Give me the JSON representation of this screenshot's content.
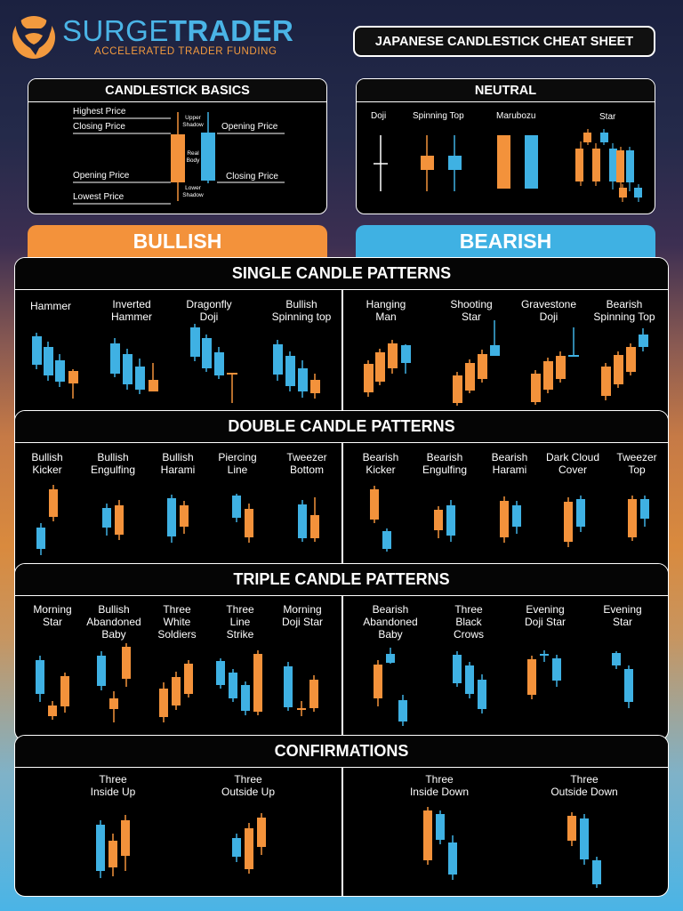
{
  "header": {
    "brand_light": "SURGE",
    "brand_bold": "TRADER",
    "tagline": "ACCELERATED TRADER FUNDING",
    "title": "JAPANESE CANDLESTICK CHEAT SHEET"
  },
  "colors": {
    "bullish": "#f3923b",
    "bearish": "#3fb1e3",
    "background": "#000000"
  },
  "basics": {
    "title": "CANDLESTICK BASICS",
    "left_labels": [
      "Highest Price",
      "Closing Price",
      "Opening Price",
      "Lowest Price"
    ],
    "mid_labels": {
      "upper": "Upper\nShadow",
      "real": "Real\nBody",
      "lower": "Lower\nShadow"
    },
    "right_labels": [
      "Opening Price",
      "Closing Price"
    ]
  },
  "neutral": {
    "title": "NEUTRAL",
    "items": [
      "Doji",
      "Spinning Top",
      "Marubozu",
      "Star"
    ]
  },
  "tabs": {
    "bullish": "BULLISH",
    "bearish": "BEARISH"
  },
  "single": {
    "title": "SINGLE CANDLE PATTERNS",
    "bullish": [
      "Hammer",
      "Inverted\nHammer",
      "Dragonfly\nDoji",
      "Bullish\nSpinning top"
    ],
    "bearish": [
      "Hanging\nMan",
      "Shooting\nStar",
      "Gravestone\nDoji",
      "Bearish\nSpinning Top"
    ]
  },
  "double": {
    "title": "DOUBLE CANDLE PATTERNS",
    "bullish": [
      "Bullish\nKicker",
      "Bullish\nEngulfing",
      "Bullish\nHarami",
      "Piercing\nLine",
      "Tweezer\nBottom"
    ],
    "bearish": [
      "Bearish\nKicker",
      "Bearish\nEngulfing",
      "Bearish\nHarami",
      "Dark Cloud\nCover",
      "Tweezer\nTop"
    ]
  },
  "triple": {
    "title": "TRIPLE CANDLE PATTERNS",
    "bullish": [
      "Morning\nStar",
      "Bullish\nAbandoned\nBaby",
      "Three\nWhite\nSoldiers",
      "Three\nLine\nStrike",
      "Morning\nDoji Star"
    ],
    "bearish": [
      "Bearish\nAbandoned\nBaby",
      "Three\nBlack\nCrows",
      "Evening\nDoji Star",
      "Evening\nStar"
    ]
  },
  "confirmations": {
    "title": "CONFIRMATIONS",
    "bullish": [
      "Three\nInside Up",
      "Three\nOutside Up"
    ],
    "bearish": [
      "Three\nInside Down",
      "Three\nOutside Down"
    ]
  }
}
